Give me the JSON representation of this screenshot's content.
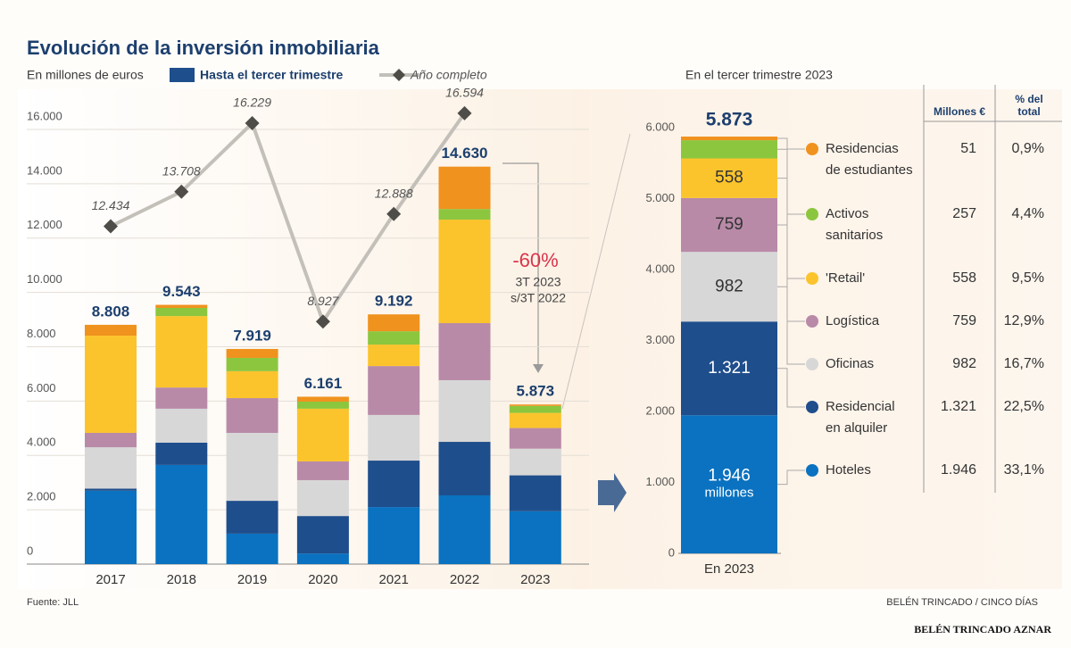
{
  "chart_data": [
    {
      "type": "bar",
      "title": "Evolución de la inversión inmobiliaria",
      "subtitle": "En millones de euros",
      "bar_legend": "Hasta el tercer trimestre",
      "bar_legend_color": "#1f4e8c",
      "categories": [
        "2017",
        "2018",
        "2019",
        "2020",
        "2021",
        "2022",
        "2023"
      ],
      "series": [
        {
          "color": "#0a72c0",
          "values": [
            2700,
            3650,
            1120,
            390,
            2100,
            2530,
            1946
          ]
        },
        {
          "color": "#1f4e8c",
          "values": [
            80,
            820,
            1210,
            1380,
            1710,
            1970,
            1321
          ]
        },
        {
          "color": "#d7d7d7",
          "values": [
            1520,
            1250,
            2500,
            1320,
            1680,
            2270,
            982
          ]
        },
        {
          "color": "#b88aa8",
          "values": [
            530,
            780,
            1280,
            690,
            1800,
            2100,
            759
          ]
        },
        {
          "color": "#fbc42c",
          "values": [
            3580,
            2630,
            990,
            1940,
            790,
            3810,
            558
          ]
        },
        {
          "color": "#8cc63f",
          "values": [
            0,
            300,
            490,
            260,
            490,
            390,
            257
          ]
        },
        {
          "color": "#f0921e",
          "values": [
            398,
            113,
            329,
            181,
            622,
            1560,
            51
          ]
        }
      ],
      "totals": {
        "values": [
          8808,
          9543,
          7919,
          6161,
          9192,
          14630,
          5873
        ],
        "value_labels": [
          "8.808",
          "9.543",
          "7.919",
          "6.161",
          "9.192",
          "14.630",
          "5.873"
        ]
      },
      "line": {
        "name": "Año completo",
        "color": "#c3bfb9",
        "marker_color": "#4f4d48",
        "values": [
          12434,
          13708,
          16229,
          8927,
          12888,
          16594,
          null
        ],
        "value_labels": [
          "12.434",
          "13.708",
          "16.229",
          "8.927",
          "12.888",
          "16.594",
          null
        ]
      },
      "annotations": [
        "-60%",
        "3T 2023",
        "s/3T 2022"
      ],
      "ylim": [
        0,
        16000
      ],
      "yticks": [
        0,
        {
          "value": 2000,
          "label": "2.000"
        },
        {
          "value": 4000,
          "label": "4.000"
        },
        {
          "value": 6000,
          "label": "6.000"
        },
        {
          "value": 8000,
          "label": "8.000"
        },
        {
          "value": 10000,
          "label": "10.000"
        },
        {
          "value": 12000,
          "label": "12.000"
        },
        {
          "value": 14000,
          "label": "14.000"
        },
        {
          "value": 16000,
          "label": "16.000"
        }
      ],
      "grid": true
    },
    {
      "type": "bar",
      "title": "En el tercer trimestre 2023",
      "categories": [
        "En 2023"
      ],
      "total": {
        "value": 5873,
        "label": "5.873"
      },
      "unit_label": "millones",
      "series": [
        {
          "name": "Hoteles",
          "color": "#0a72c0",
          "values": [
            1946
          ],
          "value_labels": [
            "1.946"
          ]
        },
        {
          "name": "Residencial en alquiler",
          "color": "#1f4e8c",
          "values": [
            1321
          ],
          "value_labels": [
            "1.321"
          ]
        },
        {
          "name": "Oficinas",
          "color": "#d7d7d7",
          "values": [
            982
          ],
          "value_labels": [
            "982"
          ]
        },
        {
          "name": "Logística",
          "color": "#b88aa8",
          "values": [
            759
          ],
          "value_labels": [
            "759"
          ]
        },
        {
          "name": "'Retail'",
          "color": "#fbc42c",
          "values": [
            558
          ],
          "value_labels": [
            "558"
          ]
        },
        {
          "name": "Activos sanitarios",
          "color": "#8cc63f",
          "values": [
            257
          ]
        },
        {
          "name": "Residencias de estudiantes",
          "color": "#f0921e",
          "values": [
            51
          ]
        }
      ],
      "table": {
        "headers": [
          "Millones €",
          "% del total"
        ],
        "rows": [
          [
            "1.946",
            "33,1%"
          ],
          [
            "1.321",
            "22,5%"
          ],
          [
            "982",
            "16,7%"
          ],
          [
            "759",
            "12,9%"
          ],
          [
            "558",
            "9,5%"
          ],
          [
            "257",
            "4,4%"
          ],
          [
            "51",
            "0,9%"
          ]
        ]
      },
      "ylim": [
        0,
        6000
      ],
      "yticks": [
        0,
        {
          "value": 1000,
          "label": "1.000"
        },
        {
          "value": 2000,
          "label": "2.000"
        },
        {
          "value": 3000,
          "label": "3.000"
        },
        {
          "value": 4000,
          "label": "4.000"
        },
        {
          "value": 5000,
          "label": "5.000"
        },
        {
          "value": 6000,
          "label": "6.000"
        }
      ]
    }
  ],
  "footer": {
    "source": "Fuente: JLL",
    "credit": "BELÉN TRINCADO / CINCO DÍAS",
    "watermark": "BELÉN TRINCADO AZNAR"
  }
}
